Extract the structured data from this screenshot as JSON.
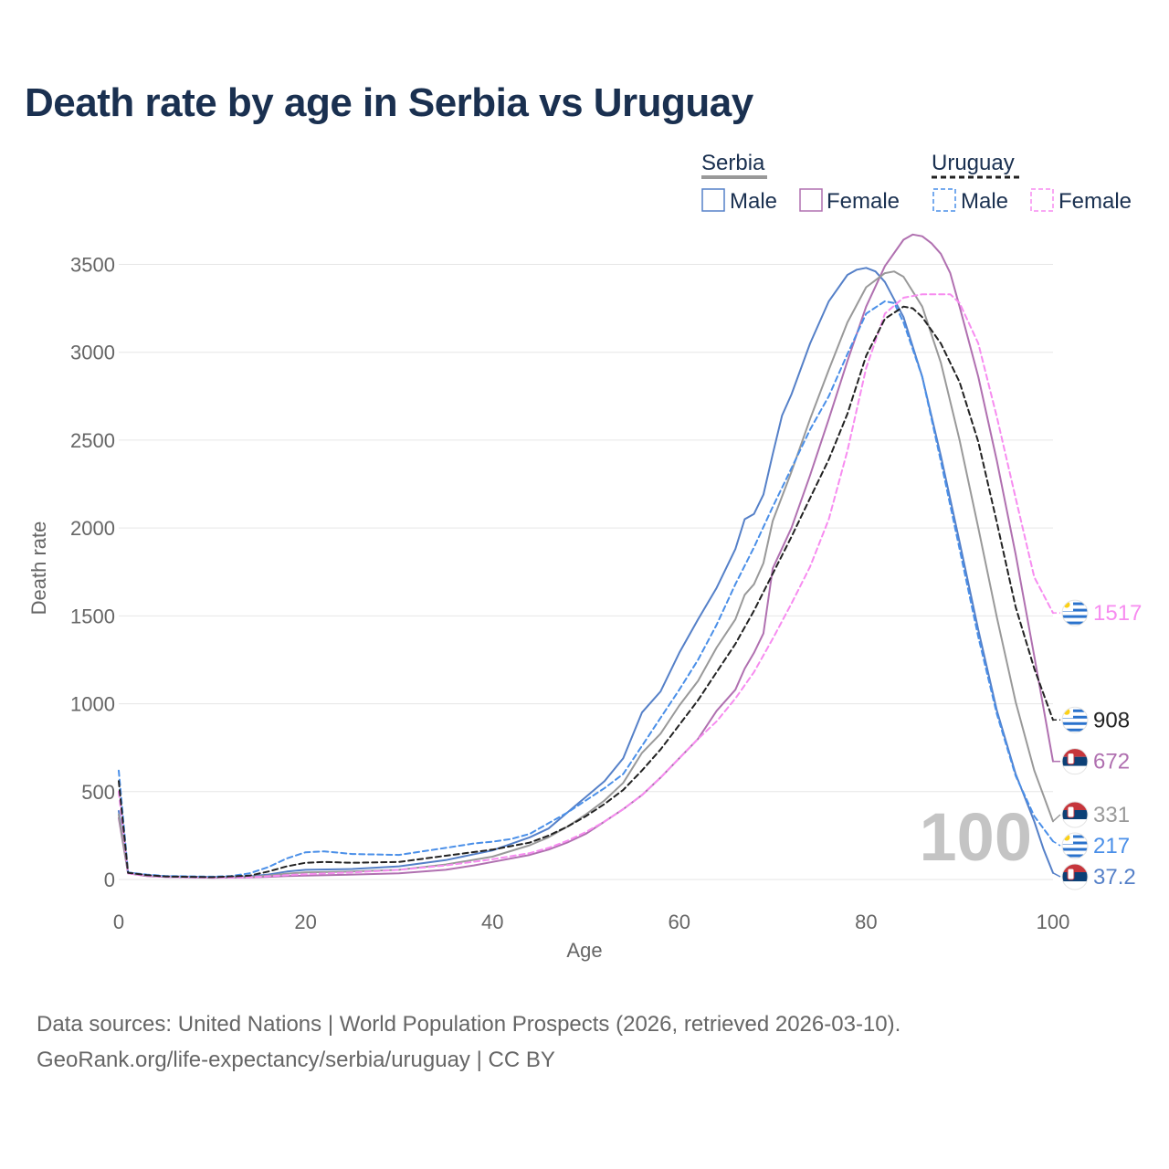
{
  "title": "Death rate by age in Serbia vs Uruguay",
  "sources": {
    "line1": "Data sources: United Nations | World Population Prospects (2026, retrieved 2026-03-10).",
    "line2": "GeoRank.org/life-expectancy/serbia/uruguay | CC BY"
  },
  "colors": {
    "serbia_male": "#5580c8",
    "serbia_female": "#b070b0",
    "serbia_total": "#999999",
    "uruguay_male": "#4a8fe8",
    "uruguay_female": "#f78cf0",
    "uruguay_total": "#222222",
    "grid": "#e6e6e6",
    "axis_text": "#666666",
    "legend_text": "#1a3050",
    "watermark": "#c4c4c4"
  },
  "chart_data": {
    "type": "line",
    "title": "Death rate by age in Serbia vs Uruguay",
    "xlabel": "Age",
    "ylabel": "Death rate",
    "xlim": [
      0,
      100
    ],
    "ylim": [
      0,
      3700
    ],
    "xticks": [
      0,
      20,
      40,
      60,
      80,
      100
    ],
    "yticks": [
      0,
      500,
      1000,
      1500,
      2000,
      2500,
      3000,
      3500
    ],
    "grid": true,
    "watermark_age": "100",
    "legend": {
      "groups": [
        {
          "name": "Serbia",
          "style": "solid",
          "entries": [
            "Male",
            "Female"
          ]
        },
        {
          "name": "Uruguay",
          "style": "dashed",
          "entries": [
            "Male",
            "Female"
          ]
        }
      ]
    },
    "series": [
      {
        "name": "Serbia Male",
        "key": "serbia_male",
        "style": "solid",
        "end_label": "37.2",
        "points": [
          [
            0,
            390
          ],
          [
            1,
            40
          ],
          [
            3,
            25
          ],
          [
            5,
            18
          ],
          [
            10,
            14
          ],
          [
            14,
            18
          ],
          [
            16,
            28
          ],
          [
            18,
            45
          ],
          [
            20,
            55
          ],
          [
            25,
            60
          ],
          [
            30,
            75
          ],
          [
            35,
            110
          ],
          [
            40,
            165
          ],
          [
            44,
            240
          ],
          [
            46,
            290
          ],
          [
            48,
            380
          ],
          [
            50,
            470
          ],
          [
            52,
            560
          ],
          [
            54,
            690
          ],
          [
            56,
            950
          ],
          [
            58,
            1070
          ],
          [
            60,
            1290
          ],
          [
            62,
            1480
          ],
          [
            64,
            1660
          ],
          [
            66,
            1880
          ],
          [
            67,
            2050
          ],
          [
            68,
            2080
          ],
          [
            69,
            2190
          ],
          [
            70,
            2420
          ],
          [
            71,
            2640
          ],
          [
            72,
            2760
          ],
          [
            74,
            3050
          ],
          [
            76,
            3290
          ],
          [
            78,
            3440
          ],
          [
            79,
            3470
          ],
          [
            80,
            3480
          ],
          [
            81,
            3460
          ],
          [
            82,
            3400
          ],
          [
            84,
            3200
          ],
          [
            86,
            2860
          ],
          [
            88,
            2410
          ],
          [
            90,
            1920
          ],
          [
            92,
            1420
          ],
          [
            94,
            960
          ],
          [
            96,
            600
          ],
          [
            98,
            330
          ],
          [
            99,
            170
          ],
          [
            100,
            37.2
          ]
        ]
      },
      {
        "name": "Serbia Female",
        "key": "serbia_female",
        "style": "solid",
        "end_label": "672",
        "points": [
          [
            0,
            350
          ],
          [
            1,
            35
          ],
          [
            3,
            20
          ],
          [
            5,
            14
          ],
          [
            10,
            10
          ],
          [
            14,
            12
          ],
          [
            16,
            15
          ],
          [
            18,
            20
          ],
          [
            20,
            22
          ],
          [
            25,
            28
          ],
          [
            30,
            35
          ],
          [
            35,
            55
          ],
          [
            38,
            80
          ],
          [
            40,
            100
          ],
          [
            44,
            140
          ],
          [
            46,
            170
          ],
          [
            48,
            210
          ],
          [
            50,
            260
          ],
          [
            52,
            330
          ],
          [
            54,
            400
          ],
          [
            56,
            480
          ],
          [
            58,
            580
          ],
          [
            60,
            690
          ],
          [
            62,
            800
          ],
          [
            64,
            960
          ],
          [
            66,
            1080
          ],
          [
            67,
            1200
          ],
          [
            68,
            1290
          ],
          [
            69,
            1400
          ],
          [
            70,
            1770
          ],
          [
            72,
            2000
          ],
          [
            74,
            2300
          ],
          [
            76,
            2620
          ],
          [
            78,
            2950
          ],
          [
            80,
            3260
          ],
          [
            82,
            3490
          ],
          [
            84,
            3640
          ],
          [
            85,
            3670
          ],
          [
            86,
            3660
          ],
          [
            87,
            3620
          ],
          [
            88,
            3560
          ],
          [
            89,
            3450
          ],
          [
            90,
            3260
          ],
          [
            92,
            2860
          ],
          [
            94,
            2380
          ],
          [
            96,
            1850
          ],
          [
            98,
            1270
          ],
          [
            100,
            672
          ]
        ]
      },
      {
        "name": "Serbia Total",
        "key": "serbia_total",
        "style": "solid",
        "end_label": "331",
        "points": [
          [
            0,
            370
          ],
          [
            1,
            38
          ],
          [
            3,
            22
          ],
          [
            5,
            16
          ],
          [
            10,
            12
          ],
          [
            14,
            15
          ],
          [
            16,
            22
          ],
          [
            18,
            33
          ],
          [
            20,
            40
          ],
          [
            25,
            45
          ],
          [
            30,
            55
          ],
          [
            35,
            85
          ],
          [
            40,
            130
          ],
          [
            44,
            195
          ],
          [
            46,
            240
          ],
          [
            48,
            300
          ],
          [
            50,
            370
          ],
          [
            52,
            450
          ],
          [
            54,
            550
          ],
          [
            56,
            720
          ],
          [
            58,
            830
          ],
          [
            60,
            990
          ],
          [
            62,
            1130
          ],
          [
            64,
            1320
          ],
          [
            66,
            1480
          ],
          [
            67,
            1620
          ],
          [
            68,
            1680
          ],
          [
            69,
            1800
          ],
          [
            70,
            2040
          ],
          [
            72,
            2320
          ],
          [
            74,
            2620
          ],
          [
            76,
            2900
          ],
          [
            78,
            3170
          ],
          [
            80,
            3370
          ],
          [
            82,
            3450
          ],
          [
            83,
            3460
          ],
          [
            84,
            3430
          ],
          [
            86,
            3260
          ],
          [
            88,
            2940
          ],
          [
            90,
            2500
          ],
          [
            92,
            2000
          ],
          [
            94,
            1490
          ],
          [
            96,
            1010
          ],
          [
            98,
            620
          ],
          [
            100,
            331
          ]
        ]
      },
      {
        "name": "Uruguay Male",
        "key": "uruguay_male",
        "style": "dashed",
        "end_label": "217",
        "points": [
          [
            0,
            620
          ],
          [
            1,
            40
          ],
          [
            3,
            28
          ],
          [
            5,
            20
          ],
          [
            10,
            16
          ],
          [
            12,
            20
          ],
          [
            14,
            35
          ],
          [
            16,
            70
          ],
          [
            18,
            120
          ],
          [
            20,
            155
          ],
          [
            22,
            160
          ],
          [
            25,
            145
          ],
          [
            30,
            140
          ],
          [
            35,
            180
          ],
          [
            38,
            205
          ],
          [
            40,
            215
          ],
          [
            42,
            230
          ],
          [
            44,
            260
          ],
          [
            46,
            320
          ],
          [
            48,
            380
          ],
          [
            50,
            450
          ],
          [
            52,
            520
          ],
          [
            54,
            600
          ],
          [
            56,
            760
          ],
          [
            58,
            920
          ],
          [
            60,
            1080
          ],
          [
            62,
            1250
          ],
          [
            64,
            1450
          ],
          [
            66,
            1680
          ],
          [
            68,
            1890
          ],
          [
            70,
            2120
          ],
          [
            72,
            2340
          ],
          [
            74,
            2560
          ],
          [
            76,
            2750
          ],
          [
            78,
            2990
          ],
          [
            80,
            3220
          ],
          [
            82,
            3290
          ],
          [
            83,
            3280
          ],
          [
            84,
            3170
          ],
          [
            86,
            2860
          ],
          [
            88,
            2380
          ],
          [
            90,
            1880
          ],
          [
            92,
            1380
          ],
          [
            94,
            940
          ],
          [
            96,
            590
          ],
          [
            98,
            360
          ],
          [
            100,
            217
          ]
        ]
      },
      {
        "name": "Uruguay Female",
        "key": "uruguay_female",
        "style": "dashed",
        "end_label": "1517",
        "points": [
          [
            0,
            500
          ],
          [
            1,
            35
          ],
          [
            3,
            22
          ],
          [
            5,
            15
          ],
          [
            10,
            10
          ],
          [
            14,
            12
          ],
          [
            16,
            18
          ],
          [
            18,
            25
          ],
          [
            20,
            30
          ],
          [
            25,
            40
          ],
          [
            30,
            55
          ],
          [
            35,
            80
          ],
          [
            40,
            115
          ],
          [
            44,
            150
          ],
          [
            46,
            180
          ],
          [
            48,
            220
          ],
          [
            50,
            270
          ],
          [
            52,
            330
          ],
          [
            54,
            400
          ],
          [
            56,
            480
          ],
          [
            58,
            580
          ],
          [
            60,
            690
          ],
          [
            62,
            800
          ],
          [
            64,
            900
          ],
          [
            66,
            1030
          ],
          [
            68,
            1180
          ],
          [
            70,
            1370
          ],
          [
            72,
            1570
          ],
          [
            74,
            1780
          ],
          [
            76,
            2050
          ],
          [
            78,
            2440
          ],
          [
            80,
            2910
          ],
          [
            82,
            3220
          ],
          [
            84,
            3310
          ],
          [
            86,
            3330
          ],
          [
            88,
            3330
          ],
          [
            89,
            3330
          ],
          [
            90,
            3280
          ],
          [
            92,
            3050
          ],
          [
            94,
            2630
          ],
          [
            96,
            2170
          ],
          [
            98,
            1720
          ],
          [
            100,
            1517
          ]
        ]
      },
      {
        "name": "Uruguay Total",
        "key": "uruguay_total",
        "style": "dashed",
        "end_label": "908",
        "points": [
          [
            0,
            560
          ],
          [
            1,
            38
          ],
          [
            3,
            25
          ],
          [
            5,
            17
          ],
          [
            10,
            13
          ],
          [
            14,
            22
          ],
          [
            16,
            45
          ],
          [
            18,
            75
          ],
          [
            20,
            95
          ],
          [
            22,
            100
          ],
          [
            25,
            95
          ],
          [
            30,
            100
          ],
          [
            35,
            135
          ],
          [
            40,
            170
          ],
          [
            44,
            210
          ],
          [
            46,
            250
          ],
          [
            48,
            300
          ],
          [
            50,
            360
          ],
          [
            52,
            430
          ],
          [
            54,
            510
          ],
          [
            56,
            620
          ],
          [
            58,
            740
          ],
          [
            60,
            880
          ],
          [
            62,
            1020
          ],
          [
            64,
            1180
          ],
          [
            66,
            1340
          ],
          [
            68,
            1530
          ],
          [
            70,
            1740
          ],
          [
            72,
            1950
          ],
          [
            74,
            2170
          ],
          [
            76,
            2390
          ],
          [
            78,
            2650
          ],
          [
            80,
            2980
          ],
          [
            82,
            3190
          ],
          [
            84,
            3260
          ],
          [
            85,
            3250
          ],
          [
            86,
            3200
          ],
          [
            88,
            3050
          ],
          [
            90,
            2830
          ],
          [
            92,
            2490
          ],
          [
            94,
            2030
          ],
          [
            96,
            1550
          ],
          [
            98,
            1200
          ],
          [
            100,
            908
          ]
        ]
      }
    ]
  }
}
